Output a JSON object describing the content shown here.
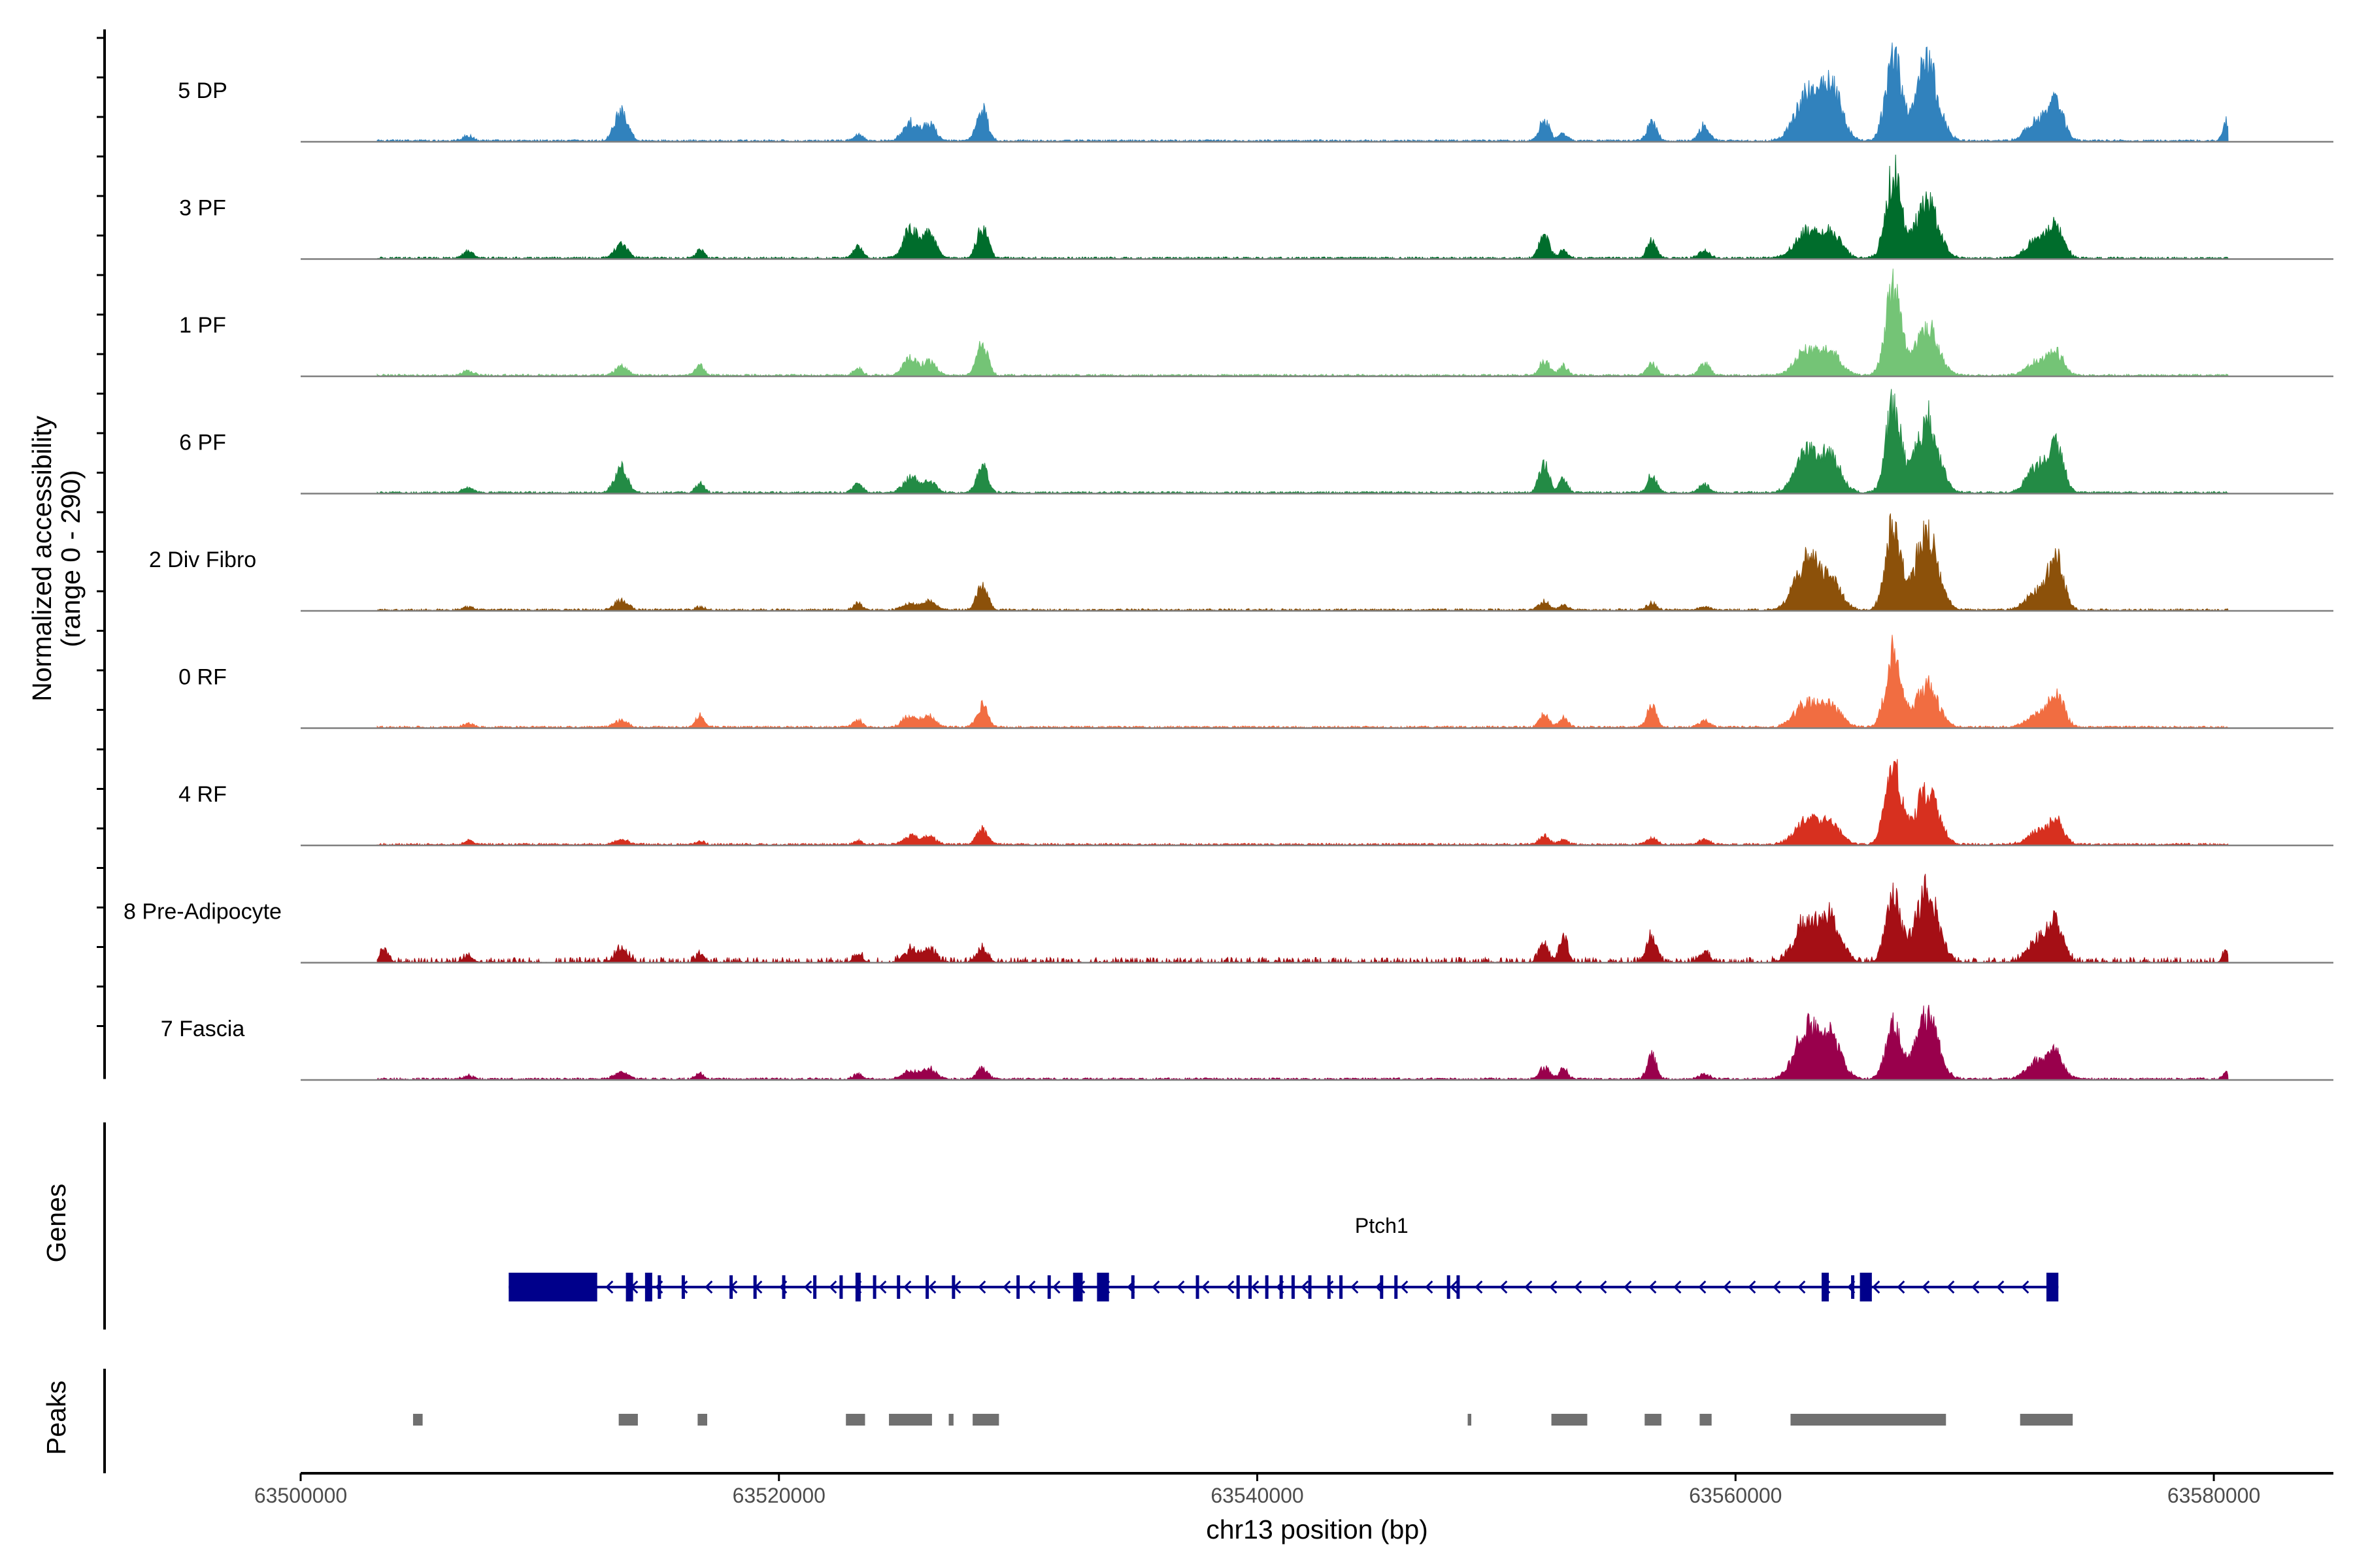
{
  "chart_data": {
    "type": "area",
    "title": "",
    "ylabel_line1": "Normalized accessibility",
    "ylabel_line2": "(range 0 - 290)",
    "xlabel": "chr13 position (bp)",
    "region": {
      "chrom": "chr13",
      "start": 63500000,
      "end": 63585000
    },
    "ymax": 290,
    "xticks": [
      63500000,
      63520000,
      63540000,
      63560000,
      63580000
    ],
    "xtick_labels": [
      "63500000",
      "63520000",
      "63540000",
      "63560000",
      "63580000"
    ],
    "data_start": 63503200,
    "data_end": 63580600,
    "peak_centers": [
      63503500,
      63507000,
      63513400,
      63516700,
      63523300,
      63525500,
      63526300,
      63528500,
      63552000,
      63552800,
      63556500,
      63558700,
      63563000,
      63564000,
      63566600,
      63568000,
      63572600,
      63573400,
      63580500
    ],
    "series": [
      {
        "name": "5 DP",
        "color": "#3182bd",
        "peaks": [
          0,
          6,
          34,
          0,
          8,
          22,
          20,
          38,
          24,
          8,
          22,
          18,
          54,
          62,
          100,
          88,
          24,
          44,
          22
        ]
      },
      {
        "name": "3 PF",
        "color": "#006d2c",
        "peaks": [
          0,
          8,
          15,
          10,
          14,
          34,
          30,
          38,
          28,
          10,
          20,
          10,
          30,
          28,
          100,
          68,
          22,
          38,
          0
        ]
      },
      {
        "name": "1 PF",
        "color": "#74c476",
        "peaks": [
          0,
          6,
          10,
          12,
          8,
          20,
          16,
          38,
          18,
          12,
          14,
          14,
          30,
          24,
          100,
          58,
          16,
          26,
          0
        ]
      },
      {
        "name": "6 PF",
        "color": "#238b45",
        "peaks": [
          0,
          6,
          28,
          10,
          12,
          18,
          14,
          30,
          34,
          16,
          20,
          10,
          46,
          38,
          100,
          88,
          30,
          52,
          0
        ]
      },
      {
        "name": "2 Div Fibro",
        "color": "#8c510a",
        "peaks": [
          0,
          4,
          12,
          4,
          8,
          8,
          10,
          28,
          10,
          6,
          8,
          4,
          58,
          32,
          100,
          92,
          22,
          60,
          0
        ]
      },
      {
        "name": "0 RF",
        "color": "#f16d41",
        "peaks": [
          0,
          4,
          8,
          14,
          8,
          14,
          12,
          26,
          14,
          12,
          24,
          8,
          28,
          24,
          86,
          50,
          14,
          40,
          0
        ]
      },
      {
        "name": "4 RF",
        "color": "#d7301f",
        "peaks": [
          0,
          4,
          6,
          4,
          4,
          10,
          10,
          18,
          10,
          6,
          8,
          6,
          30,
          22,
          100,
          64,
          14,
          28,
          0
        ]
      },
      {
        "name": "8 Pre-Adipocyte",
        "color": "#a50f15",
        "peaks": [
          14,
          8,
          16,
          10,
          10,
          14,
          16,
          16,
          20,
          30,
          34,
          12,
          48,
          46,
          74,
          84,
          24,
          44,
          12
        ]
      },
      {
        "name": "7 Fascia",
        "color": "#99004c",
        "peaks": [
          0,
          4,
          8,
          6,
          6,
          10,
          12,
          12,
          14,
          12,
          26,
          6,
          58,
          46,
          64,
          72,
          20,
          30,
          8
        ]
      }
    ],
    "genes_panel_label": "Genes",
    "gene": {
      "name": "Ptch1",
      "strand": "-",
      "start": 63508700,
      "end": 63573500,
      "exons": [
        [
          63508700,
          63512400
        ],
        [
          63513600,
          63513900
        ],
        [
          63514400,
          63514700
        ],
        [
          63523200,
          63523400
        ],
        [
          63532300,
          63532700
        ],
        [
          63533300,
          63533800
        ],
        [
          63563600,
          63563900
        ],
        [
          63565200,
          63565700
        ],
        [
          63573000,
          63573500
        ]
      ],
      "minor_exons": [
        63515000,
        63516000,
        63518000,
        63519000,
        63520200,
        63521500,
        63522600,
        63524000,
        63525000,
        63526200,
        63527300,
        63530000,
        63531300,
        63534800,
        63537500,
        63539200,
        63539700,
        63540400,
        63541000,
        63541500,
        63542200,
        63543000,
        63543500,
        63545200,
        63545800,
        63548000,
        63548400,
        63564900
      ]
    },
    "peaks_panel_label": "Peaks",
    "peak_intervals": [
      [
        63504700,
        63505100
      ],
      [
        63513300,
        63514100
      ],
      [
        63516600,
        63517000
      ],
      [
        63522800,
        63523600
      ],
      [
        63524600,
        63526400
      ],
      [
        63527100,
        63527300
      ],
      [
        63528100,
        63529200
      ],
      [
        63548800,
        63548950
      ],
      [
        63552300,
        63553800
      ],
      [
        63556200,
        63556900
      ],
      [
        63558500,
        63559000
      ],
      [
        63562300,
        63568800
      ],
      [
        63571900,
        63574100
      ]
    ]
  }
}
